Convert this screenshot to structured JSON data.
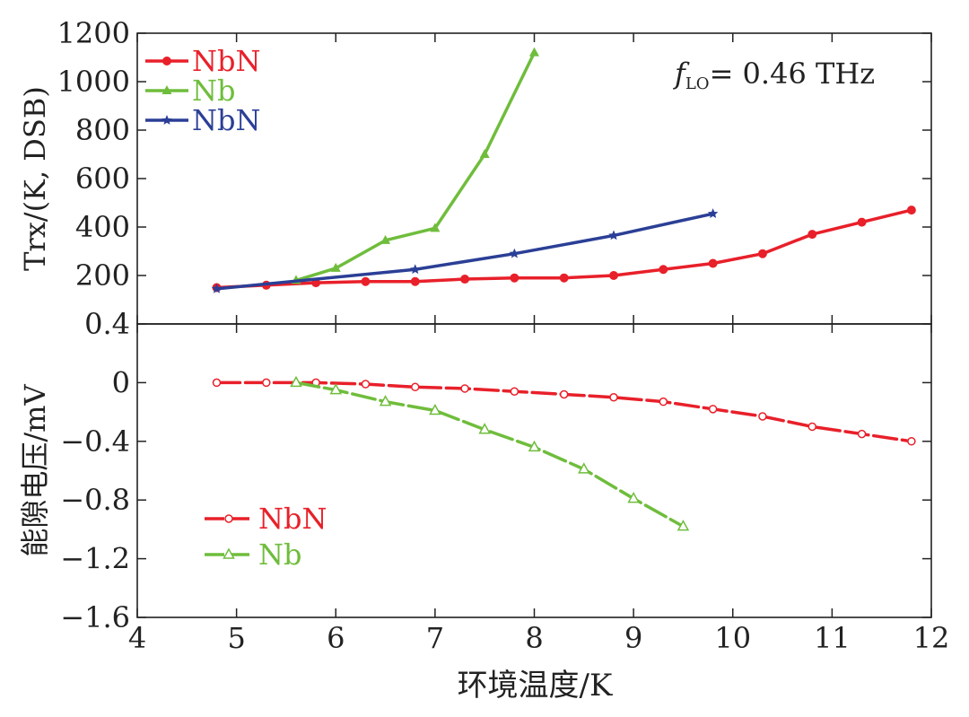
{
  "chart_data": [
    {
      "type": "line",
      "ylabel": "Trx/(K, DSB)",
      "ylim": [
        0,
        1200
      ],
      "yticks": [
        "200",
        "400",
        "600",
        "800",
        "1000",
        "1200"
      ],
      "annotation": {
        "prefix": "f",
        "subscript": "LO",
        "suffix": "= 0.46 THz"
      },
      "legend_position": "top-left",
      "series": [
        {
          "name": "NbN",
          "color": "#e8202a",
          "marker": "circle",
          "x": [
            4.8,
            5.3,
            5.8,
            6.3,
            6.8,
            7.3,
            7.8,
            8.3,
            8.8,
            9.3,
            9.8,
            10.3,
            10.8,
            11.3,
            11.8
          ],
          "y": [
            150,
            160,
            170,
            175,
            175,
            185,
            190,
            190,
            200,
            225,
            250,
            290,
            370,
            420,
            470
          ]
        },
        {
          "name": "Nb",
          "color": "#6fbd3c",
          "marker": "triangle",
          "x": [
            5.6,
            6.0,
            6.5,
            7.0,
            7.5,
            8.0
          ],
          "y": [
            180,
            230,
            345,
            395,
            700,
            1120
          ]
        },
        {
          "name": "NbN",
          "color": "#2b3f96",
          "marker": "star",
          "x": [
            4.8,
            6.8,
            7.8,
            8.8,
            9.8
          ],
          "y": [
            145,
            225,
            290,
            365,
            455
          ]
        }
      ]
    },
    {
      "type": "line",
      "xlabel": "环境温度/K",
      "ylabel": "能隙电压/mV",
      "xlim": [
        4,
        12
      ],
      "ylim": [
        -1.6,
        0.4
      ],
      "xticks": [
        "4",
        "5",
        "6",
        "7",
        "8",
        "9",
        "10",
        "11",
        "12"
      ],
      "yticks": [
        "0.4",
        "0",
        "−0.4",
        "−0.8",
        "−1.2",
        "−1.6"
      ],
      "legend_position": "bottom-left",
      "series": [
        {
          "name": "NbN",
          "color": "#e8202a",
          "marker": "open-circle",
          "x": [
            4.8,
            5.3,
            5.8,
            6.3,
            6.8,
            7.3,
            7.8,
            8.3,
            8.8,
            9.3,
            9.8,
            10.3,
            10.8,
            11.3,
            11.8
          ],
          "y": [
            0.0,
            0.0,
            0.0,
            -0.01,
            -0.03,
            -0.04,
            -0.06,
            -0.08,
            -0.1,
            -0.13,
            -0.18,
            -0.23,
            -0.3,
            -0.35,
            -0.4
          ]
        },
        {
          "name": "Nb",
          "color": "#6fbd3c",
          "marker": "open-triangle",
          "x": [
            5.6,
            6.0,
            6.5,
            7.0,
            7.5,
            8.0,
            8.5,
            9.0,
            9.5
          ],
          "y": [
            0.0,
            -0.05,
            -0.13,
            -0.19,
            -0.32,
            -0.44,
            -0.59,
            -0.79,
            -0.98
          ]
        }
      ]
    }
  ]
}
